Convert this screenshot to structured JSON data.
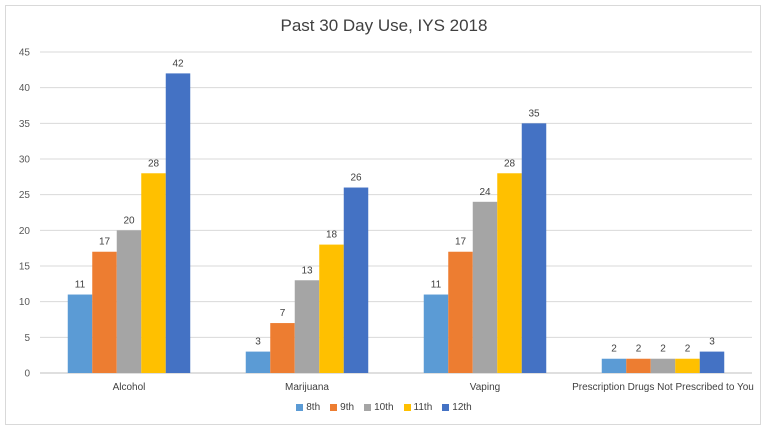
{
  "chart_data": {
    "type": "bar",
    "title": "Past 30 Day Use, IYS 2018",
    "categories": [
      "Alcohol",
      "Marijuana",
      "Vaping",
      "Prescription Drugs Not Prescribed to You"
    ],
    "series": [
      {
        "name": "8th",
        "color": "#5b9bd5",
        "values": [
          11,
          3,
          11,
          2
        ]
      },
      {
        "name": "9th",
        "color": "#ed7d31",
        "values": [
          17,
          7,
          17,
          2
        ]
      },
      {
        "name": "10th",
        "color": "#a5a5a5",
        "values": [
          20,
          13,
          24,
          2
        ]
      },
      {
        "name": "11th",
        "color": "#ffc000",
        "values": [
          28,
          18,
          28,
          2
        ]
      },
      {
        "name": "12th",
        "color": "#4472c4",
        "values": [
          42,
          26,
          35,
          3
        ]
      }
    ],
    "ylim": [
      0,
      45
    ],
    "yticks": [
      0,
      5,
      10,
      15,
      20,
      25,
      30,
      35,
      40,
      45
    ],
    "grid": true,
    "legend": "bottom"
  }
}
